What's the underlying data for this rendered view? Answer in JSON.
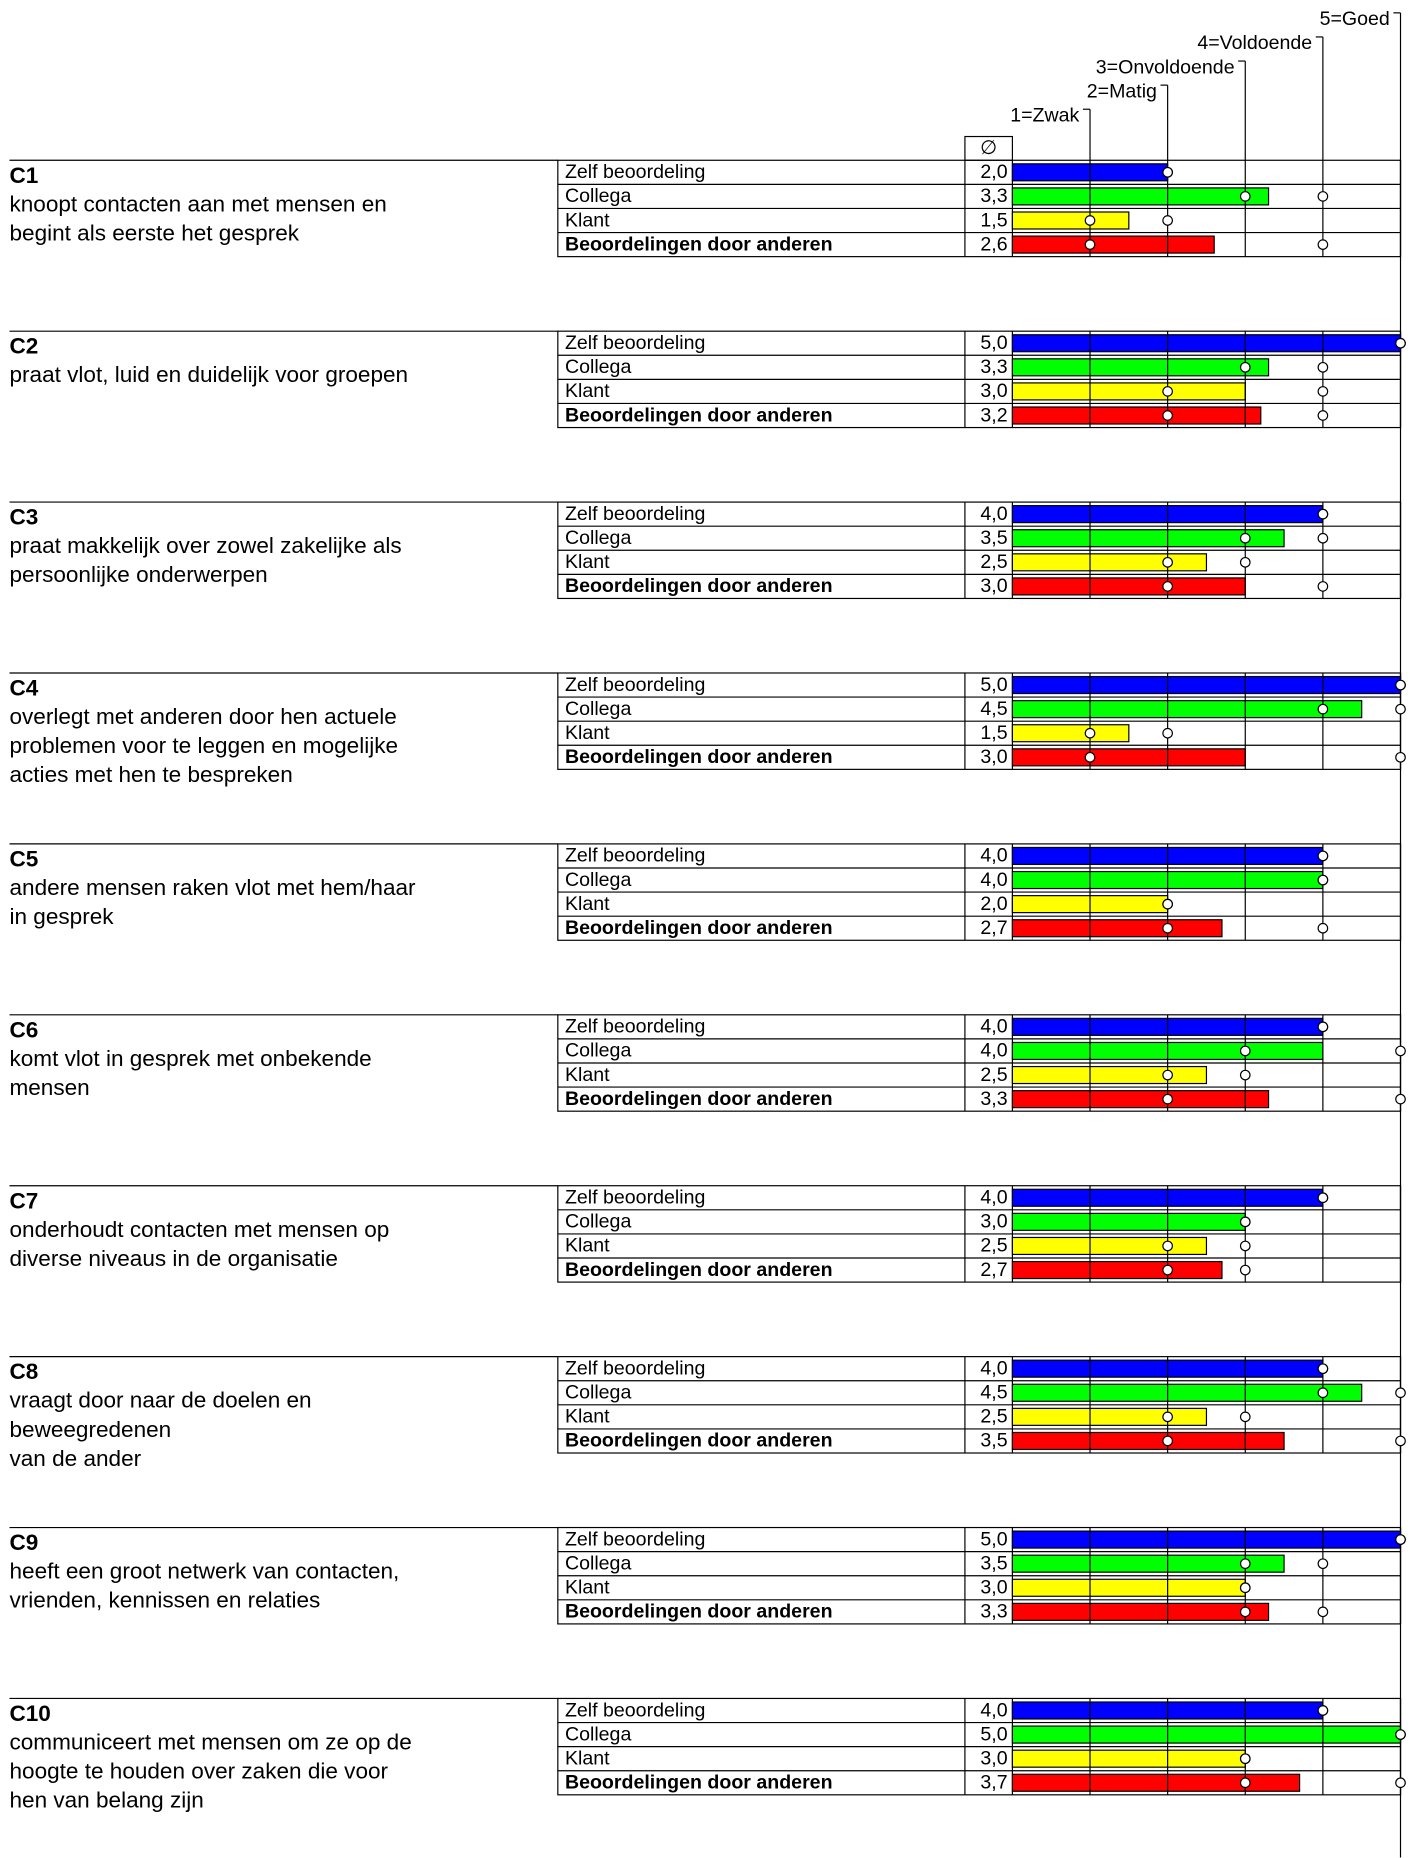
{
  "chart_data": {
    "type": "bar",
    "xlim": [
      0,
      5
    ],
    "xticks": [
      {
        "value": 1,
        "label": "1=Zwak"
      },
      {
        "value": 2,
        "label": "2=Matig"
      },
      {
        "value": 3,
        "label": "3=Onvoldoende"
      },
      {
        "value": 4,
        "label": "4=Voldoende"
      },
      {
        "value": 5,
        "label": "5=Goed"
      }
    ],
    "avg_header": "∅",
    "rows": [
      {
        "name": "Zelf beoordeling",
        "color": "#0000ff"
      },
      {
        "name": "Collega",
        "color": "#00ff00"
      },
      {
        "name": "Klant",
        "color": "#ffff00"
      },
      {
        "name": "Beoordelingen door anderen",
        "color": "#ff0000"
      }
    ],
    "groups": [
      {
        "code": "C1",
        "description": [
          "knoopt contacten aan met mensen en",
          "begint als eerste het gesprek"
        ],
        "values": [
          2.0,
          3.3,
          1.5,
          2.6
        ],
        "value_labels": [
          "2,0",
          "3,3",
          "1,5",
          "2,6"
        ],
        "ranges": [
          [
            2,
            2
          ],
          [
            3,
            4
          ],
          [
            1,
            2
          ],
          [
            1,
            4
          ]
        ]
      },
      {
        "code": "C2",
        "description": [
          "praat vlot, luid en duidelijk voor groepen"
        ],
        "values": [
          5.0,
          3.3,
          3.0,
          3.2
        ],
        "value_labels": [
          "5,0",
          "3,3",
          "3,0",
          "3,2"
        ],
        "ranges": [
          [
            5,
            5
          ],
          [
            3,
            4
          ],
          [
            2,
            4
          ],
          [
            2,
            4
          ]
        ]
      },
      {
        "code": "C3",
        "description": [
          "praat makkelijk over zowel zakelijke als",
          "persoonlijke onderwerpen"
        ],
        "values": [
          4.0,
          3.5,
          2.5,
          3.0
        ],
        "value_labels": [
          "4,0",
          "3,5",
          "2,5",
          "3,0"
        ],
        "ranges": [
          [
            4,
            4
          ],
          [
            3,
            4
          ],
          [
            2,
            3
          ],
          [
            2,
            4
          ]
        ]
      },
      {
        "code": "C4",
        "description": [
          "overlegt met anderen door hen actuele",
          "problemen voor te leggen en mogelijke",
          "acties met hen te bespreken"
        ],
        "values": [
          5.0,
          4.5,
          1.5,
          3.0
        ],
        "value_labels": [
          "5,0",
          "4,5",
          "1,5",
          "3,0"
        ],
        "ranges": [
          [
            5,
            5
          ],
          [
            4,
            5
          ],
          [
            1,
            2
          ],
          [
            1,
            5
          ]
        ]
      },
      {
        "code": "C5",
        "description": [
          "andere mensen raken vlot met hem/haar",
          "in gesprek"
        ],
        "values": [
          4.0,
          4.0,
          2.0,
          2.7
        ],
        "value_labels": [
          "4,0",
          "4,0",
          "2,0",
          "2,7"
        ],
        "ranges": [
          [
            4,
            4
          ],
          [
            4,
            4
          ],
          [
            2,
            2
          ],
          [
            2,
            4
          ]
        ]
      },
      {
        "code": "C6",
        "description": [
          "komt vlot in gesprek met onbekende",
          "mensen"
        ],
        "values": [
          4.0,
          4.0,
          2.5,
          3.3
        ],
        "value_labels": [
          "4,0",
          "4,0",
          "2,5",
          "3,3"
        ],
        "ranges": [
          [
            4,
            4
          ],
          [
            3,
            5
          ],
          [
            2,
            3
          ],
          [
            2,
            5
          ]
        ]
      },
      {
        "code": "C7",
        "description": [
          "onderhoudt contacten met mensen op",
          "diverse niveaus in de organisatie"
        ],
        "values": [
          4.0,
          3.0,
          2.5,
          2.7
        ],
        "value_labels": [
          "4,0",
          "3,0",
          "2,5",
          "2,7"
        ],
        "ranges": [
          [
            4,
            4
          ],
          [
            3,
            3
          ],
          [
            2,
            3
          ],
          [
            2,
            3
          ]
        ]
      },
      {
        "code": "C8",
        "description": [
          "vraagt door naar de doelen en",
          "beweegredenen",
          "van de ander"
        ],
        "values": [
          4.0,
          4.5,
          2.5,
          3.5
        ],
        "value_labels": [
          "4,0",
          "4,5",
          "2,5",
          "3,5"
        ],
        "ranges": [
          [
            4,
            4
          ],
          [
            4,
            5
          ],
          [
            2,
            3
          ],
          [
            2,
            5
          ]
        ]
      },
      {
        "code": "C9",
        "description": [
          "heeft een groot netwerk van contacten,",
          "vrienden, kennissen en relaties"
        ],
        "values": [
          5.0,
          3.5,
          3.0,
          3.3
        ],
        "value_labels": [
          "5,0",
          "3,5",
          "3,0",
          "3,3"
        ],
        "ranges": [
          [
            5,
            5
          ],
          [
            3,
            4
          ],
          [
            3,
            3
          ],
          [
            3,
            4
          ]
        ]
      },
      {
        "code": "C10",
        "description": [
          "communiceert met mensen om ze op de",
          "hoogte te houden over zaken die voor",
          "hen van belang zijn"
        ],
        "values": [
          4.0,
          5.0,
          3.0,
          3.7
        ],
        "value_labels": [
          "4,0",
          "5,0",
          "3,0",
          "3,7"
        ],
        "ranges": [
          [
            4,
            4
          ],
          [
            5,
            5
          ],
          [
            3,
            3
          ],
          [
            3,
            5
          ]
        ]
      }
    ]
  }
}
